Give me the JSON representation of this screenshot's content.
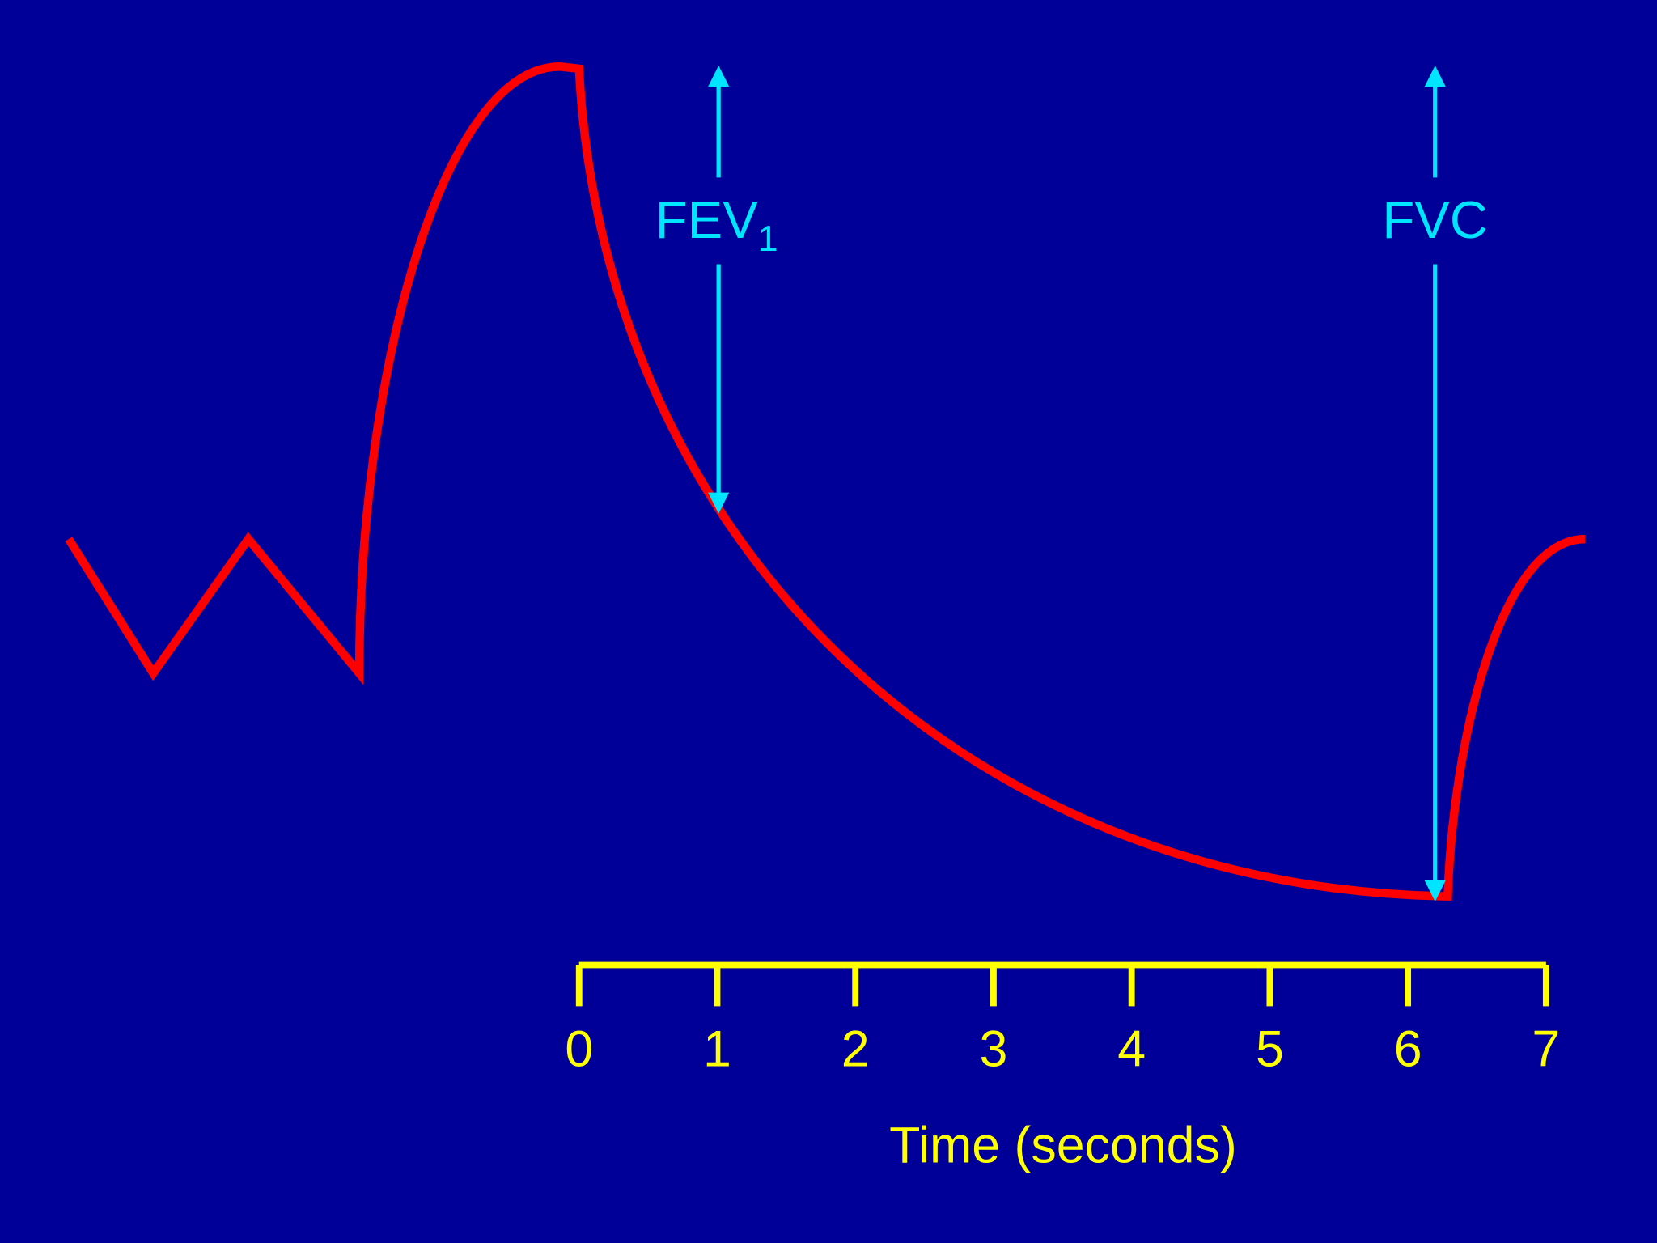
{
  "annotations": [
    {
      "label": "FEV",
      "subscript": "1"
    },
    {
      "label": "FVC"
    }
  ],
  "axis": {
    "ticks": [
      "0",
      "1",
      "2",
      "3",
      "4",
      "5",
      "6",
      "7"
    ],
    "title": "Time (seconds)"
  }
}
